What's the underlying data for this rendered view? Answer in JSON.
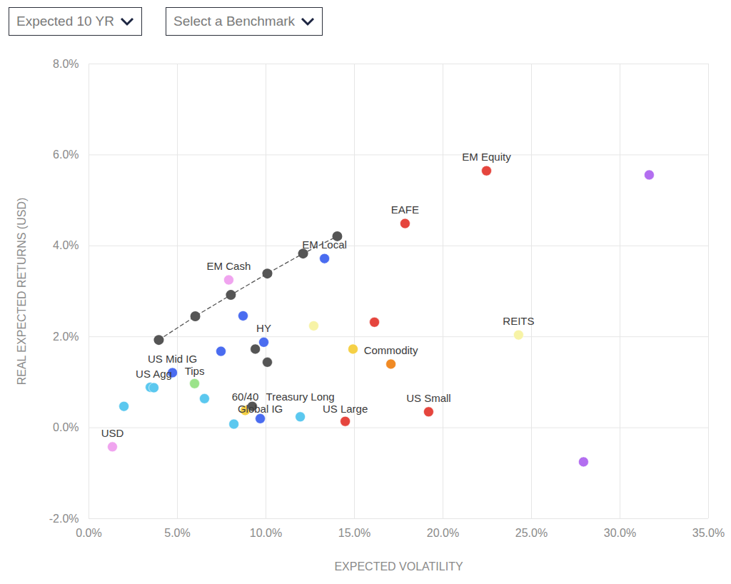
{
  "controls": [
    "Expected 10 YR",
    "Select a Benchmark"
  ],
  "chart_data": {
    "type": "scatter",
    "xlabel": "EXPECTED VOLATILITY",
    "ylabel": "REAL EXPECTED RETURNS (USD)",
    "xlim": [
      0,
      35
    ],
    "ylim": [
      -2,
      8
    ],
    "xticks": [
      {
        "value": 0,
        "label": "0.0%"
      },
      {
        "value": 5,
        "label": "5.0%"
      },
      {
        "value": 10,
        "label": "10.0%"
      },
      {
        "value": 15,
        "label": "15.0%"
      },
      {
        "value": 20,
        "label": "20.0%"
      },
      {
        "value": 25,
        "label": "25.0%"
      },
      {
        "value": 30,
        "label": "30.0%"
      },
      {
        "value": 35,
        "label": "35.0%"
      }
    ],
    "yticks": [
      {
        "value": -2,
        "label": "-2.0%"
      },
      {
        "value": 0,
        "label": "0.0%"
      },
      {
        "value": 2,
        "label": "2.0%"
      },
      {
        "value": 4,
        "label": "4.0%"
      },
      {
        "value": 6,
        "label": "6.0%"
      },
      {
        "value": 8,
        "label": "8.0%"
      }
    ],
    "grid": true,
    "marker": "circle",
    "x": [
      1.33,
      1.98,
      3.47,
      3.67,
      4.72,
      5.97,
      6.53,
      8.19,
      8.83,
      9.23,
      9.68,
      11.94,
      14.48,
      19.19,
      17.06,
      14.92,
      12.7,
      24.27,
      16.13,
      17.86,
      22.46,
      31.65,
      27.94,
      13.31,
      7.9,
      8.71,
      9.88,
      7.46,
      9.4,
      10.08
    ],
    "y": [
      -0.42,
      0.47,
      0.89,
      0.88,
      1.21,
      0.97,
      0.64,
      0.08,
      0.38,
      0.47,
      0.2,
      0.24,
      0.14,
      0.35,
      1.4,
      1.73,
      2.24,
      2.04,
      2.32,
      4.49,
      5.65,
      5.56,
      -0.75,
      3.72,
      3.25,
      2.46,
      1.88,
      1.68,
      1.73,
      1.44
    ],
    "colors": [
      "#f0a4ef",
      "#5bc8ef",
      "#5bc8ef",
      "#5bc8ef",
      "#4a6cf0",
      "#9be38a",
      "#5bc8ef",
      "#5bc8ef",
      "#f5d046",
      "#555555",
      "#4a6cf0",
      "#5bc8ef",
      "#e5453d",
      "#e5453d",
      "#f08a24",
      "#f5d046",
      "#f7f3a6",
      "#f7f3a6",
      "#e5453d",
      "#e5453d",
      "#e5453d",
      "#b36ef0",
      "#b36ef0",
      "#4a6cf0",
      "#f0a4ef",
      "#4a6cf0",
      "#4a6cf0",
      "#4a6cf0",
      "#555555",
      "#555555"
    ],
    "labels": [
      "USD",
      null,
      null,
      "US Agg",
      "US Mid IG",
      "Tips",
      null,
      null,
      "60/40",
      null,
      "Global IG",
      "Treasury Long",
      "US Large",
      "US Small",
      "Commodity",
      null,
      null,
      "REITS",
      null,
      "EAFE",
      "EM Equity",
      null,
      null,
      "EM Local",
      "EM Cash",
      null,
      "HY",
      null,
      null,
      null
    ],
    "frontier": {
      "x": [
        3.95,
        6.01,
        8.02,
        10.08,
        12.1,
        14.03
      ],
      "y": [
        1.93,
        2.45,
        2.92,
        3.39,
        3.83,
        4.21
      ],
      "color": "#555555",
      "line_style": "dashed",
      "marker": "circle"
    }
  }
}
